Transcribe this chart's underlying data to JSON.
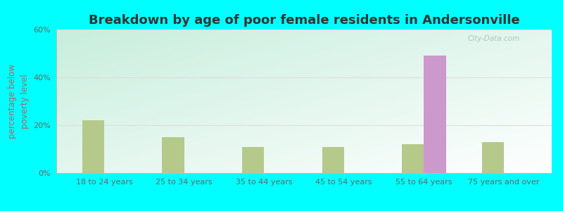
{
  "title": "Breakdown by age of poor female residents in Andersonville",
  "ylabel": "percentage below\npoverty level",
  "categories": [
    "18 to 24 years",
    "25 to 34 years",
    "35 to 44 years",
    "45 to 54 years",
    "55 to 64 years",
    "75 years and over"
  ],
  "andersonville_values": [
    0,
    0,
    0,
    0,
    49,
    0
  ],
  "tennessee_values": [
    22,
    15,
    11,
    11,
    12,
    13
  ],
  "andersonville_color": "#cc99cc",
  "tennessee_color": "#b5c98a",
  "ylim": [
    0,
    60
  ],
  "yticks": [
    0,
    20,
    40,
    60
  ],
  "ytick_labels": [
    "0%",
    "20%",
    "40%",
    "60%"
  ],
  "figure_background": "#00ffff",
  "title_fontsize": 13,
  "axis_label_fontsize": 8.5,
  "tick_fontsize": 8,
  "legend_fontsize": 9,
  "bar_width": 0.55,
  "watermark_text": "City-Data.com"
}
